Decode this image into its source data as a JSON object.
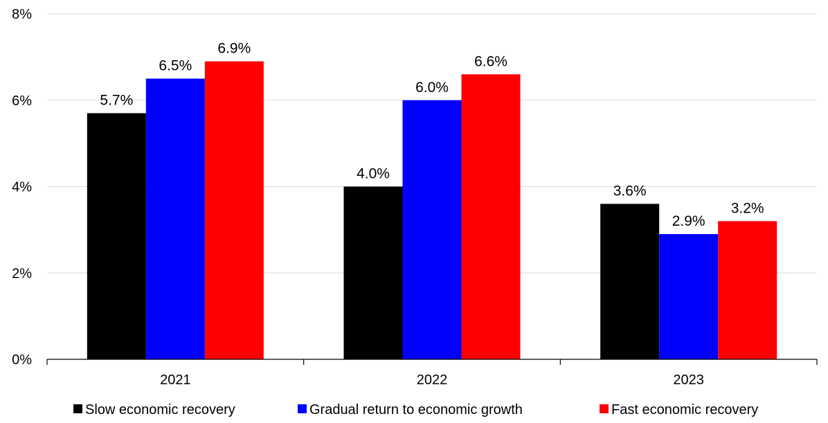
{
  "chart_data": {
    "type": "bar",
    "categories": [
      "2021",
      "2022",
      "2023"
    ],
    "series": [
      {
        "name": "Slow economic recovery",
        "values": [
          5.7,
          4.0,
          3.6
        ],
        "labels": [
          "5.7%",
          "4.0%",
          "3.6%"
        ],
        "color": "#000000"
      },
      {
        "name": "Gradual return to economic growth",
        "values": [
          6.5,
          6.0,
          2.9
        ],
        "labels": [
          "6.5%",
          "6.0%",
          "2.9%"
        ],
        "color": "#0000ff"
      },
      {
        "name": "Fast economic recovery",
        "values": [
          6.9,
          6.6,
          3.2
        ],
        "labels": [
          "6.9%",
          "6.6%",
          "3.2%"
        ],
        "color": "#ff0000"
      }
    ],
    "y_ticks": [
      0,
      2,
      4,
      6,
      8
    ],
    "y_tick_labels": [
      "0%",
      "2%",
      "4%",
      "6%",
      "8%"
    ],
    "ylim": [
      0,
      8
    ],
    "grid": true,
    "legend_position": "bottom"
  }
}
